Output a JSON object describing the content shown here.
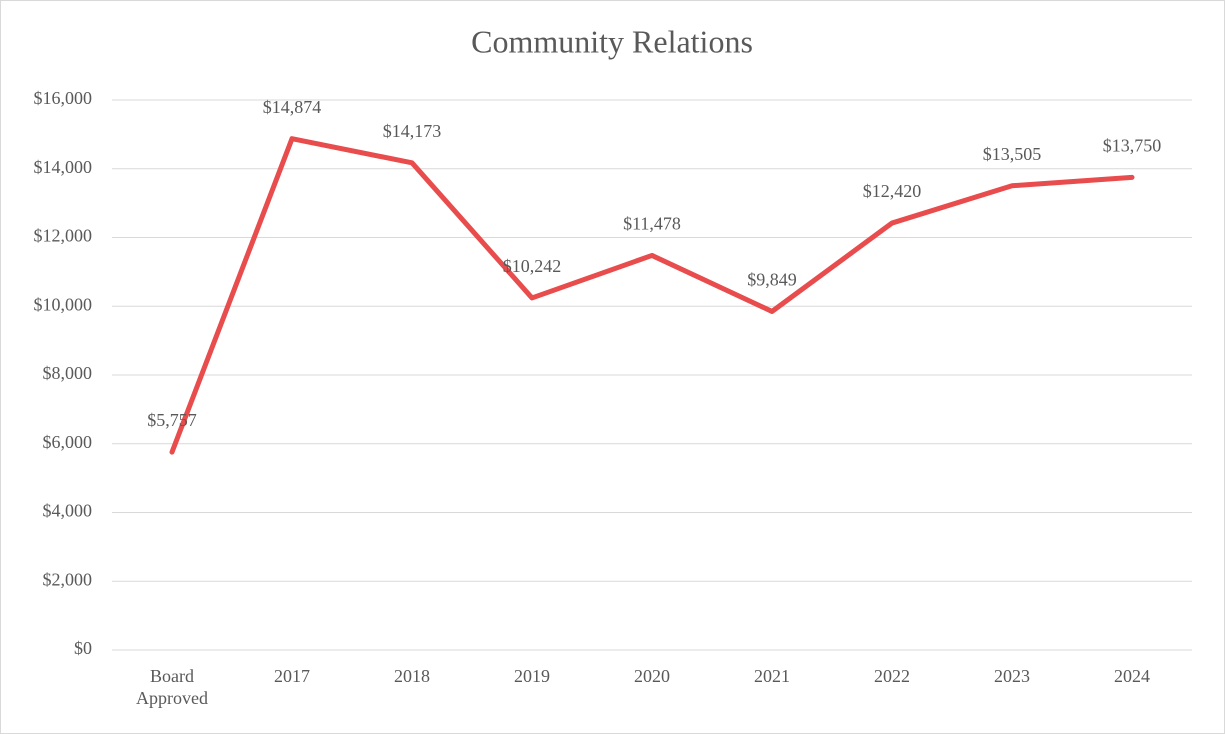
{
  "chart_data": {
    "type": "line",
    "title": "Community Relations",
    "categories": [
      "Board Approved",
      "2017",
      "2018",
      "2019",
      "2020",
      "2021",
      "2022",
      "2023",
      "2024"
    ],
    "series": [
      {
        "name": "Community Relations",
        "color": "#e84c4c",
        "values": [
          5757,
          14874,
          14173,
          10242,
          11478,
          9849,
          12420,
          13505,
          13750
        ],
        "value_labels": [
          "$5,757",
          "$14,874",
          "$14,173",
          "$10,242",
          "$11,478",
          "$9,849",
          "$12,420",
          "$13,505",
          "$13,750"
        ]
      }
    ],
    "ylim": [
      0,
      16000
    ],
    "yticks": [
      {
        "value": 0,
        "label": "$0"
      },
      {
        "value": 2000,
        "label": "$2,000"
      },
      {
        "value": 4000,
        "label": "$4,000"
      },
      {
        "value": 6000,
        "label": "$6,000"
      },
      {
        "value": 8000,
        "label": "$8,000"
      },
      {
        "value": 10000,
        "label": "$10,000"
      },
      {
        "value": 12000,
        "label": "$12,000"
      },
      {
        "value": 14000,
        "label": "$14,000"
      },
      {
        "value": 16000,
        "label": "$16,000"
      }
    ],
    "grid": true
  }
}
